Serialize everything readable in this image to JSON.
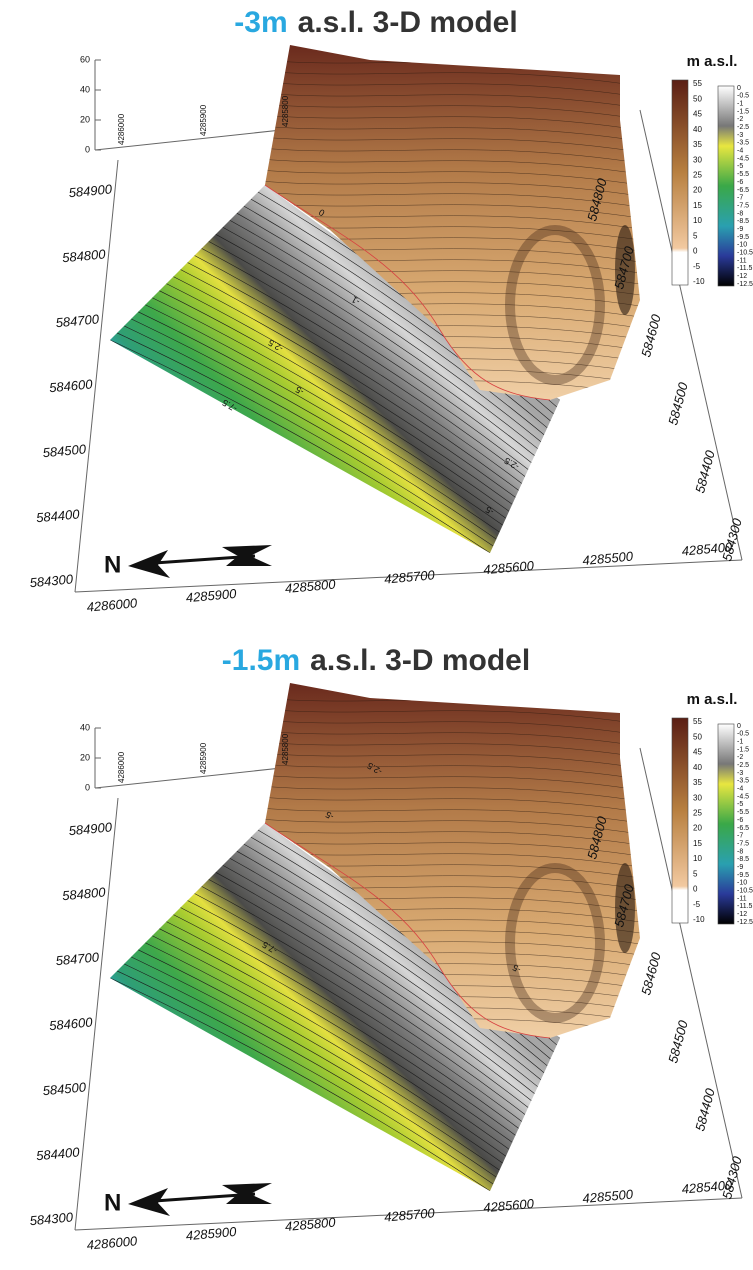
{
  "panels": [
    {
      "title": {
        "depth": "-3m",
        "rest": "a.s.l. 3-D model"
      },
      "z_axis": [
        "60",
        "40",
        "20",
        "0"
      ],
      "top_axis": [
        "4286000",
        "4285900",
        "4285800"
      ],
      "left_axis": [
        "584900",
        "584800",
        "584700",
        "584600",
        "584500",
        "584400",
        "584300"
      ],
      "right_axis": [
        "584800",
        "584700",
        "584600",
        "584500",
        "584400",
        "584300"
      ],
      "bottom_axis": [
        "4286000",
        "4285900",
        "4285800",
        "4285700",
        "4285600",
        "4285500",
        "4285400"
      ],
      "legend": {
        "title": "m a.s.l.",
        "scale_land": [
          "55",
          "50",
          "45",
          "40",
          "35",
          "30",
          "25",
          "20",
          "15",
          "10",
          "5",
          "0",
          "-5",
          "-10"
        ],
        "scale_sea": [
          "0",
          "-0.5",
          "-1",
          "-1.5",
          "-2",
          "-2.5",
          "-3",
          "-3.5",
          "-4",
          "-4.5",
          "-5",
          "-5.5",
          "-6",
          "-6.5",
          "-7",
          "-7.5",
          "-8",
          "-8.5",
          "-9",
          "-9.5",
          "-10",
          "-10.5",
          "-11",
          "-11.5",
          "-12",
          "-12.5"
        ]
      },
      "contour_labels": [
        "0",
        "-1",
        "-2.5",
        "-5",
        "-7.5",
        "-2.5",
        "-5"
      ],
      "north": "N"
    },
    {
      "title": {
        "depth": "-1.5m",
        "rest": "a.s.l. 3-D model"
      },
      "z_axis": [
        "40",
        "20",
        "0"
      ],
      "top_axis": [
        "4286000",
        "4285900",
        "4285800"
      ],
      "left_axis": [
        "584900",
        "584800",
        "584700",
        "584600",
        "584500",
        "584400",
        "584300"
      ],
      "right_axis": [
        "584800",
        "584700",
        "584600",
        "584500",
        "584400",
        "584300"
      ],
      "bottom_axis": [
        "4286000",
        "4285900",
        "4285800",
        "4285700",
        "4285600",
        "4285500",
        "4285400"
      ],
      "legend": {
        "title": "m a.s.l.",
        "scale_land": [
          "55",
          "50",
          "45",
          "40",
          "35",
          "30",
          "25",
          "20",
          "15",
          "10",
          "5",
          "0",
          "-5",
          "-10"
        ],
        "scale_sea": [
          "0",
          "-0.5",
          "-1",
          "-1.5",
          "-2",
          "-2.5",
          "-3",
          "-3.5",
          "-4",
          "-4.5",
          "-5",
          "-5.5",
          "-6",
          "-6.5",
          "-7",
          "-7.5",
          "-8",
          "-8.5",
          "-9",
          "-9.5",
          "-10",
          "-10.5",
          "-11",
          "-11.5",
          "-12",
          "-12.5"
        ]
      },
      "contour_labels": [
        "-2.5",
        "-5",
        "-7.5",
        "-5"
      ],
      "north": "N"
    }
  ]
}
